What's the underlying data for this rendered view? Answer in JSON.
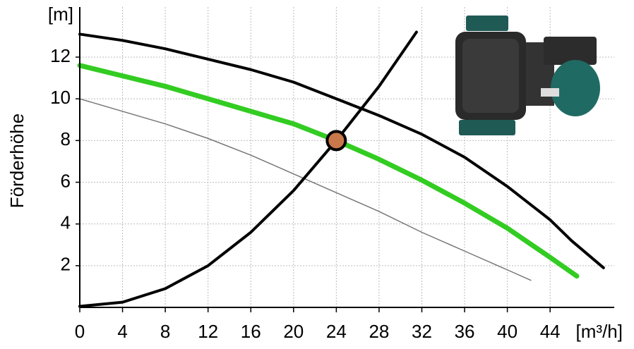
{
  "chart_data": {
    "type": "line",
    "ylabel": "Förderhöhe",
    "y_unit": "[m]",
    "x_unit": "[m³/h]",
    "xlim": [
      0,
      50
    ],
    "ylim": [
      0,
      14.4
    ],
    "xticks": [
      0,
      4,
      8,
      12,
      16,
      20,
      24,
      28,
      32,
      36,
      40,
      44
    ],
    "yticks": [
      2,
      4,
      6,
      8,
      10,
      12
    ],
    "grid": true,
    "series": [
      {
        "color": "#000000",
        "width": 4,
        "x": [
          0,
          4,
          8,
          12,
          16,
          20,
          24,
          28,
          32,
          36,
          40,
          44,
          46,
          49
        ],
        "values": [
          13.1,
          12.8,
          12.4,
          11.9,
          11.4,
          10.8,
          10.0,
          9.2,
          8.3,
          7.2,
          5.8,
          4.2,
          3.2,
          1.9
        ]
      },
      {
        "color": "#33cc22",
        "width": 7,
        "x": [
          0,
          4,
          8,
          12,
          16,
          20,
          24,
          28,
          32,
          36,
          40,
          44,
          46.5
        ],
        "values": [
          11.6,
          11.1,
          10.6,
          10.0,
          9.4,
          8.8,
          8.0,
          7.1,
          6.1,
          5.0,
          3.8,
          2.4,
          1.5
        ]
      },
      {
        "color": "#777777",
        "width": 1.5,
        "x": [
          0,
          4,
          8,
          12,
          16,
          20,
          24,
          28,
          32,
          36,
          40,
          42.2
        ],
        "values": [
          10.0,
          9.4,
          8.8,
          8.1,
          7.3,
          6.4,
          5.5,
          4.6,
          3.6,
          2.7,
          1.8,
          1.3
        ]
      },
      {
        "color": "#000000",
        "width": 4,
        "x": [
          0,
          4,
          8,
          12,
          16,
          20,
          24,
          28,
          31.5
        ],
        "values": [
          0.05,
          0.25,
          0.9,
          2.0,
          3.6,
          5.6,
          8.0,
          10.6,
          13.2
        ]
      }
    ],
    "operating_point": {
      "x": 24,
      "y": 8,
      "color": "#c8784a"
    }
  }
}
